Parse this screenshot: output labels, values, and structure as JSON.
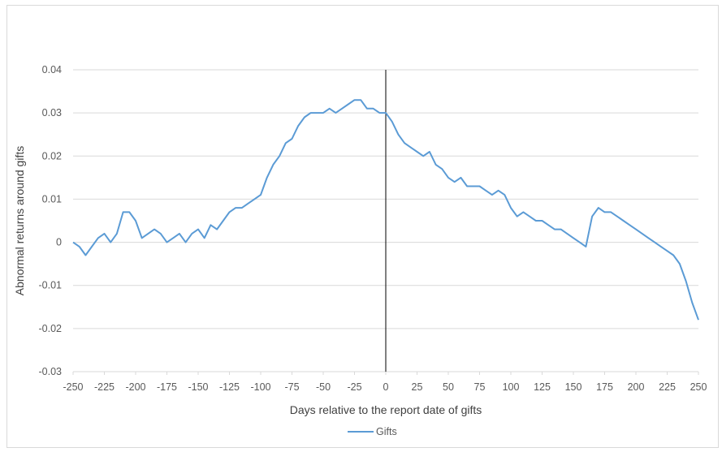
{
  "chart_data": {
    "type": "line",
    "title": "",
    "xlabel": "Days relative to  the report date of gifts",
    "ylabel": "Abnormal returns around gifts",
    "xlim": [
      -250,
      250
    ],
    "ylim": [
      -0.03,
      0.04
    ],
    "x_ticks": [
      "-250",
      "-225",
      "-200",
      "-175",
      "-150",
      "-125",
      "-100",
      "-75",
      "-50",
      "-25",
      "0",
      "25",
      "50",
      "75",
      "100",
      "125",
      "150",
      "175",
      "200",
      "225",
      "250"
    ],
    "y_ticks": [
      "0.04",
      "0.03",
      "0.02",
      "0.01",
      "0",
      "-0.01",
      "-0.02",
      "-0.03"
    ],
    "y_tick_values": [
      0.04,
      0.03,
      0.02,
      0.01,
      0,
      -0.01,
      -0.02,
      -0.03
    ],
    "grid": "horizontal",
    "reference_line_x": 0,
    "legend_position": "bottom",
    "colors": {
      "series": "#5b9bd5",
      "grid": "#d9d9d9",
      "vline": "#000000"
    },
    "series": [
      {
        "name": "Gifts",
        "x": [
          -250,
          -245,
          -240,
          -235,
          -230,
          -225,
          -220,
          -215,
          -210,
          -205,
          -200,
          -195,
          -190,
          -185,
          -180,
          -175,
          -170,
          -165,
          -160,
          -155,
          -150,
          -145,
          -140,
          -135,
          -130,
          -125,
          -120,
          -115,
          -110,
          -105,
          -100,
          -95,
          -90,
          -85,
          -80,
          -75,
          -70,
          -65,
          -60,
          -55,
          -50,
          -45,
          -40,
          -35,
          -30,
          -25,
          -20,
          -15,
          -10,
          -5,
          0,
          5,
          10,
          15,
          20,
          25,
          30,
          35,
          40,
          45,
          50,
          55,
          60,
          65,
          70,
          75,
          80,
          85,
          90,
          95,
          100,
          105,
          110,
          115,
          120,
          125,
          130,
          135,
          140,
          145,
          150,
          155,
          160,
          165,
          170,
          175,
          180,
          185,
          190,
          195,
          200,
          205,
          210,
          215,
          220,
          225,
          230,
          235,
          240,
          245,
          250
        ],
        "values": [
          0.0,
          -0.001,
          -0.003,
          -0.001,
          0.001,
          0.002,
          0.0,
          0.002,
          0.007,
          0.007,
          0.005,
          0.001,
          0.002,
          0.003,
          0.002,
          0.0,
          0.001,
          0.002,
          0.0,
          0.002,
          0.003,
          0.001,
          0.004,
          0.003,
          0.005,
          0.007,
          0.008,
          0.008,
          0.009,
          0.01,
          0.011,
          0.015,
          0.018,
          0.02,
          0.023,
          0.024,
          0.027,
          0.029,
          0.03,
          0.03,
          0.03,
          0.031,
          0.03,
          0.031,
          0.032,
          0.033,
          0.033,
          0.031,
          0.031,
          0.03,
          0.03,
          0.028,
          0.025,
          0.023,
          0.022,
          0.021,
          0.02,
          0.021,
          0.018,
          0.017,
          0.015,
          0.014,
          0.015,
          0.013,
          0.013,
          0.013,
          0.012,
          0.011,
          0.012,
          0.011,
          0.008,
          0.006,
          0.007,
          0.006,
          0.005,
          0.005,
          0.004,
          0.003,
          0.003,
          0.002,
          0.001,
          0.0,
          -0.001,
          0.006,
          0.008,
          0.007,
          0.007,
          0.006,
          0.005,
          0.004,
          0.003,
          0.002,
          0.001,
          0.0,
          -0.001,
          -0.002,
          -0.003,
          -0.005,
          -0.009,
          -0.014,
          -0.018
        ]
      }
    ]
  }
}
